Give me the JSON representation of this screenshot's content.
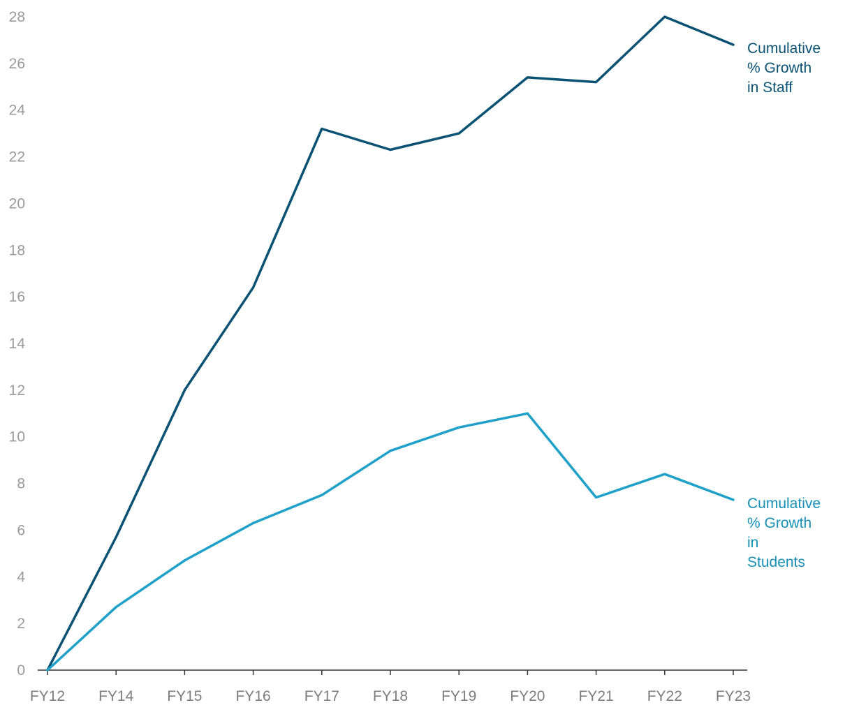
{
  "chart_data": {
    "type": "line",
    "title": "",
    "xlabel": "",
    "ylabel": "",
    "ylim": [
      0,
      28
    ],
    "yticks": [
      0,
      2,
      4,
      6,
      8,
      10,
      12,
      14,
      16,
      18,
      20,
      22,
      24,
      26,
      28
    ],
    "grid": false,
    "categories": [
      "FY12",
      "FY14",
      "FY15",
      "FY16",
      "FY17",
      "FY18",
      "FY19",
      "FY20",
      "FY21",
      "FY22",
      "FY23"
    ],
    "series": [
      {
        "name": "Cumulative % Growth in Staff",
        "label_lines": [
          "Cumulative",
          "% Growth",
          "in Staff"
        ],
        "color": "#0a5273",
        "values": [
          0,
          5.7,
          12.0,
          16.4,
          23.2,
          22.3,
          23.0,
          25.4,
          25.2,
          28.0,
          26.8
        ]
      },
      {
        "name": "Cumulative % Growth in Students",
        "label_lines": [
          "Cumulative",
          "% Growth",
          "in",
          "Students"
        ],
        "color": "#1fa0c9",
        "label_color": "#1790b8",
        "values": [
          0,
          2.7,
          4.7,
          6.3,
          7.5,
          9.4,
          10.4,
          11.0,
          7.4,
          8.4,
          7.3
        ]
      }
    ]
  }
}
